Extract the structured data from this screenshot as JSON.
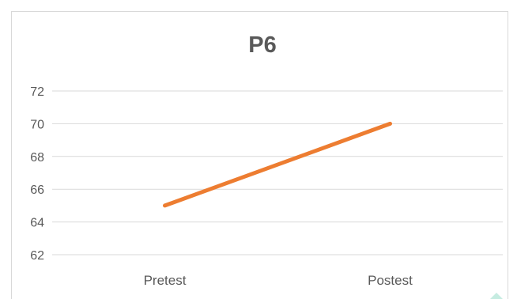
{
  "chart_data": {
    "type": "line",
    "title": "P6",
    "categories": [
      "Pretest",
      "Postest"
    ],
    "series": [
      {
        "values": [
          65,
          70
        ]
      }
    ],
    "y_ticks": [
      "62",
      "64",
      "66",
      "68",
      "70",
      "72"
    ],
    "ylim": [
      62,
      72
    ],
    "grid": true,
    "line_color": "#ed7d31",
    "grid_color": "#d9d9d9",
    "text_color": "#595959"
  }
}
